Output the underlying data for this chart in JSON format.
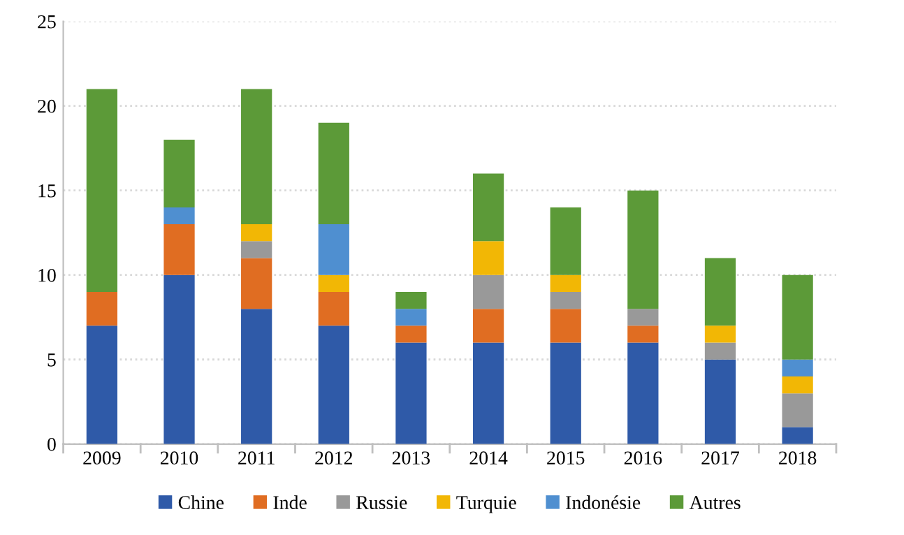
{
  "chart_data": {
    "type": "bar",
    "stacked": true,
    "categories": [
      "2009",
      "2010",
      "2011",
      "2012",
      "2013",
      "2014",
      "2015",
      "2016",
      "2017",
      "2018"
    ],
    "series": [
      {
        "name": "Chine",
        "color": "#2f5aa8",
        "values": [
          7,
          10,
          8,
          7,
          6,
          6,
          6,
          6,
          5,
          1
        ]
      },
      {
        "name": "Inde",
        "color": "#e06d22",
        "values": [
          2,
          3,
          3,
          2,
          1,
          2,
          2,
          1,
          0,
          0
        ]
      },
      {
        "name": "Russie",
        "color": "#999999",
        "values": [
          0,
          0,
          1,
          0,
          0,
          2,
          1,
          1,
          1,
          2
        ]
      },
      {
        "name": "Turquie",
        "color": "#f2b705",
        "values": [
          0,
          0,
          1,
          1,
          0,
          2,
          1,
          0,
          1,
          1
        ]
      },
      {
        "name": "Indonésie",
        "color": "#4f8fd0",
        "values": [
          0,
          1,
          0,
          3,
          1,
          0,
          0,
          0,
          0,
          1
        ]
      },
      {
        "name": "Autres",
        "color": "#5c9a38",
        "values": [
          12,
          4,
          8,
          6,
          1,
          4,
          4,
          7,
          4,
          5
        ]
      }
    ],
    "ylim": [
      0,
      25
    ],
    "yticks": [
      0,
      5,
      10,
      15,
      20,
      25
    ],
    "grid": "y",
    "legend": "bottom"
  }
}
